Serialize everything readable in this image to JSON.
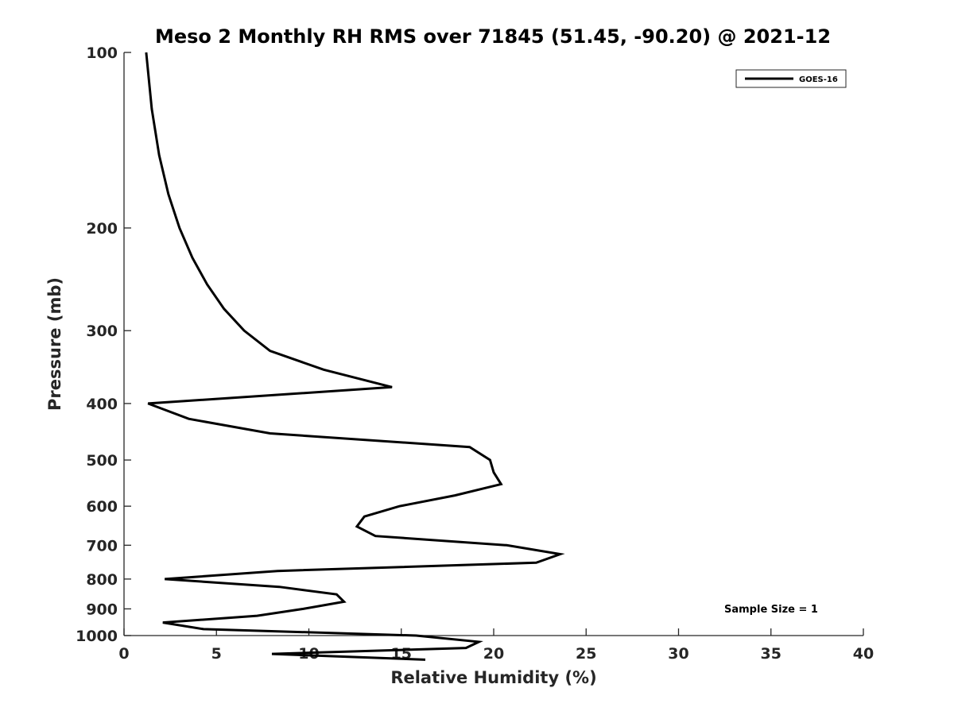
{
  "chart_data": {
    "type": "line",
    "title": "Meso 2 Monthly RH RMS over 71845 (51.45, -90.20) @ 2021-12",
    "xlabel": "Relative Humidity (%)",
    "ylabel": "Pressure (mb)",
    "xlim": [
      0,
      40
    ],
    "ylim": [
      100,
      1000
    ],
    "y_scale": "log",
    "y_reversed": true,
    "x_ticks": [
      0,
      5,
      10,
      15,
      20,
      25,
      30,
      35,
      40
    ],
    "x_tick_labels": [
      "0",
      "5",
      "10",
      "15",
      "20",
      "25",
      "30",
      "35",
      "40"
    ],
    "y_ticks": [
      100,
      200,
      300,
      400,
      500,
      600,
      700,
      800,
      900,
      1000
    ],
    "y_tick_labels": [
      "100",
      "200",
      "300",
      "400",
      "500",
      "600",
      "700",
      "800",
      "900",
      "1000"
    ],
    "grid": false,
    "legend_position": "top-right",
    "series": [
      {
        "name": "GOES-16",
        "color": "#000000",
        "x": [
          1.2,
          1.5,
          1.9,
          2.4,
          3.0,
          3.7,
          4.5,
          5.4,
          6.5,
          7.9,
          10.8,
          14.5,
          1.3,
          3.5,
          7.9,
          18.7,
          19.8,
          20.0,
          20.4,
          17.9,
          14.9,
          13.0,
          12.6,
          13.6,
          20.7,
          23.6,
          22.3,
          8.3,
          2.2,
          8.4,
          11.5,
          11.9,
          9.7,
          7.2,
          2.1,
          4.3,
          15.8,
          19.2,
          18.5,
          8.0,
          16.3
        ],
        "y": [
          100,
          125,
          150,
          175,
          200,
          225,
          250,
          275,
          300,
          325,
          350,
          375,
          400,
          425,
          450,
          475,
          500,
          525,
          550,
          575,
          600,
          625,
          650,
          675,
          700,
          725,
          750,
          775,
          800,
          825,
          850,
          875,
          900,
          925,
          950,
          975,
          1000,
          1025,
          1050,
          1075,
          1100
        ]
      }
    ],
    "annotation": "Sample Size = 1"
  }
}
